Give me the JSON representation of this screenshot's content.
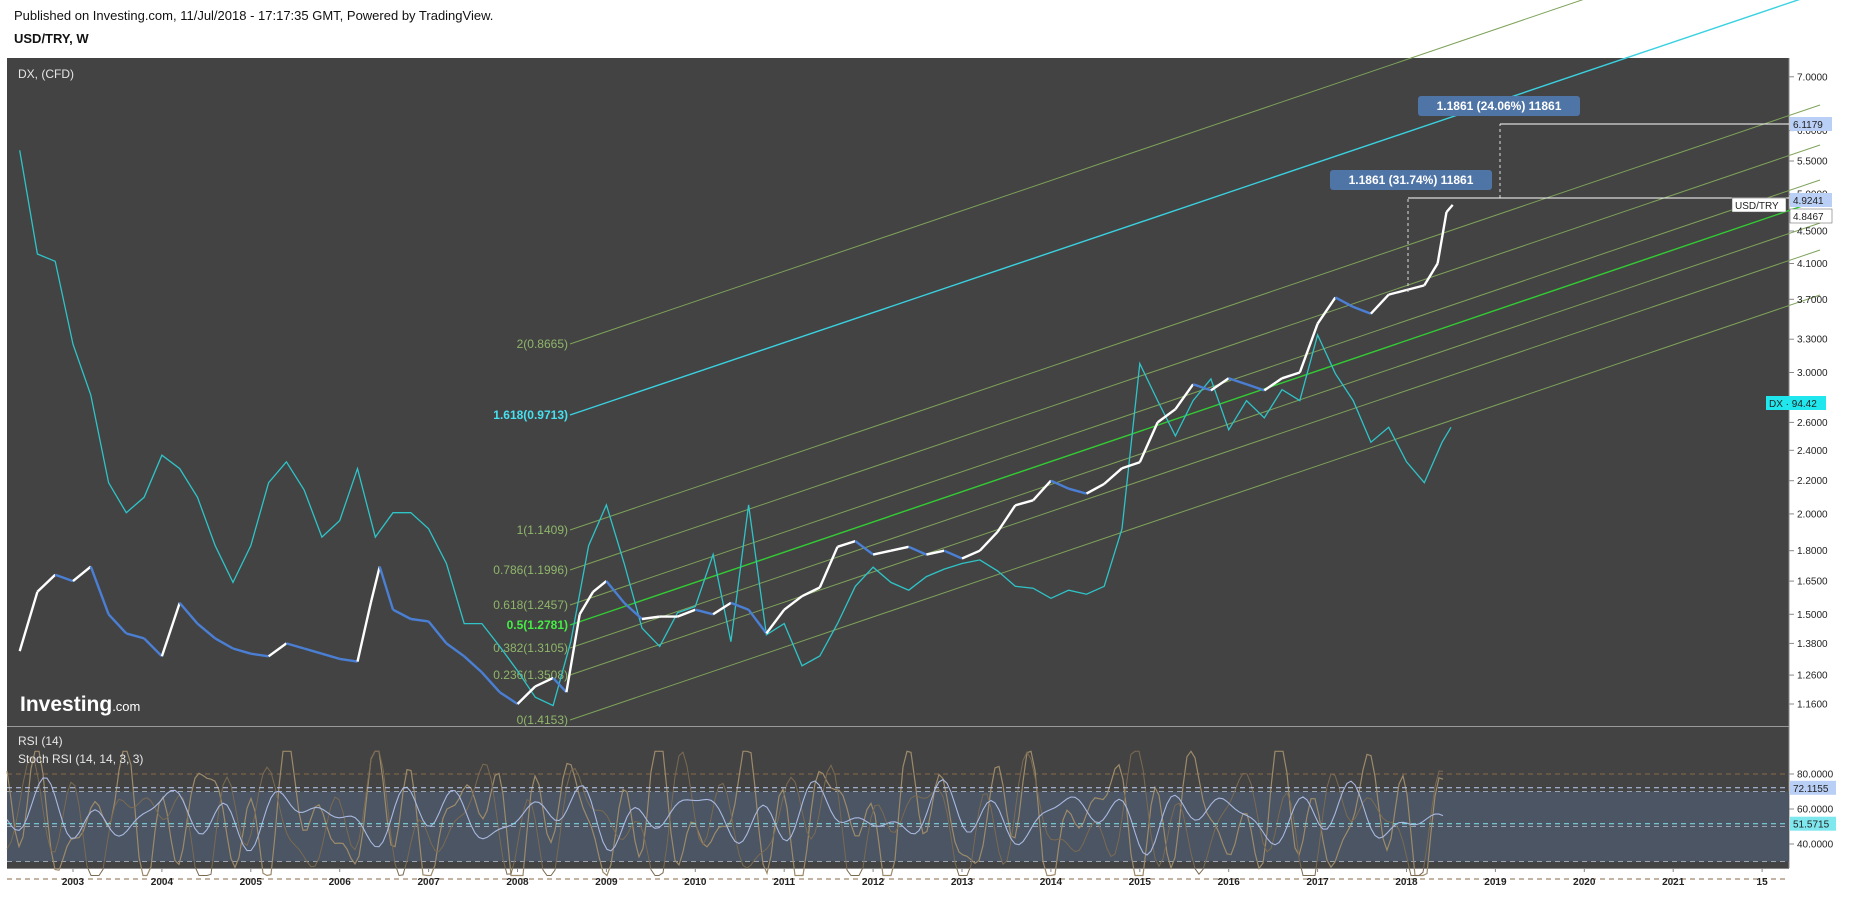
{
  "header": {
    "published": "Published on Investing.com, 11/Jul/2018 - 17:17:35 GMT, Powered by TradingView.",
    "symbol": "USD/TRY, W"
  },
  "main_panel": {
    "overlay_title": "DX,  (CFD)",
    "logo_text": "Investing",
    "logo_suffix": ".com"
  },
  "rsi_panel": {
    "title": "RSI (14)",
    "subtitle": "Stoch RSI (14, 14, 3, 3)"
  },
  "colors": {
    "background": "#434343",
    "price_up": "#ffffff",
    "price_down": "#4a7fd4",
    "dx_line": "#2ec4c8",
    "fib_line": "#7ea25a",
    "fib_mid": "#33cc33",
    "fib_top": "#3ad1e0",
    "rsi_band": "#4b5563"
  },
  "chart_data": [
    {
      "type": "line",
      "series": [
        {
          "name": "USD/TRY",
          "x": [
            2002.4,
            2002.6,
            2002.8,
            2003.0,
            2003.2,
            2003.4,
            2003.6,
            2003.8,
            2004.0,
            2004.2,
            2004.4,
            2004.6,
            2004.8,
            2005.0,
            2005.2,
            2005.4,
            2005.6,
            2005.8,
            2006.0,
            2006.2,
            2006.35,
            2006.45,
            2006.6,
            2006.8,
            2007.0,
            2007.2,
            2007.4,
            2007.6,
            2007.8,
            2008.0,
            2008.2,
            2008.4,
            2008.55,
            2008.7,
            2008.85,
            2009.0,
            2009.2,
            2009.4,
            2009.6,
            2009.8,
            2010.0,
            2010.2,
            2010.4,
            2010.6,
            2010.8,
            2011.0,
            2011.2,
            2011.4,
            2011.6,
            2011.8,
            2012.0,
            2012.2,
            2012.4,
            2012.6,
            2012.8,
            2013.0,
            2013.2,
            2013.4,
            2013.6,
            2013.8,
            2014.0,
            2014.2,
            2014.4,
            2014.6,
            2014.8,
            2015.0,
            2015.2,
            2015.4,
            2015.6,
            2015.8,
            2016.0,
            2016.2,
            2016.4,
            2016.6,
            2016.8,
            2017.0,
            2017.2,
            2017.4,
            2017.6,
            2017.8,
            2018.0,
            2018.2,
            2018.35,
            2018.45,
            2018.52
          ],
          "values": [
            1.35,
            1.6,
            1.68,
            1.65,
            1.72,
            1.5,
            1.42,
            1.4,
            1.33,
            1.55,
            1.46,
            1.4,
            1.36,
            1.34,
            1.33,
            1.38,
            1.36,
            1.34,
            1.32,
            1.31,
            1.55,
            1.72,
            1.52,
            1.48,
            1.47,
            1.38,
            1.33,
            1.27,
            1.2,
            1.16,
            1.22,
            1.25,
            1.2,
            1.5,
            1.6,
            1.65,
            1.55,
            1.48,
            1.49,
            1.49,
            1.52,
            1.5,
            1.55,
            1.52,
            1.42,
            1.52,
            1.58,
            1.62,
            1.82,
            1.85,
            1.78,
            1.8,
            1.82,
            1.78,
            1.8,
            1.76,
            1.8,
            1.9,
            2.05,
            2.08,
            2.2,
            2.15,
            2.12,
            2.18,
            2.28,
            2.32,
            2.6,
            2.7,
            2.9,
            2.85,
            2.95,
            2.9,
            2.85,
            2.95,
            3.0,
            3.45,
            3.72,
            3.62,
            3.55,
            3.75,
            3.8,
            3.85,
            4.1,
            4.75,
            4.85
          ]
        },
        {
          "name": "DX",
          "x": [
            2002.4,
            2002.6,
            2002.8,
            2003.0,
            2003.2,
            2003.4,
            2003.6,
            2003.8,
            2004.0,
            2004.2,
            2004.4,
            2004.6,
            2004.8,
            2005.0,
            2005.2,
            2005.4,
            2005.6,
            2005.8,
            2006.0,
            2006.2,
            2006.4,
            2006.6,
            2006.8,
            2007.0,
            2007.2,
            2007.4,
            2007.6,
            2007.8,
            2008.0,
            2008.2,
            2008.4,
            2008.6,
            2008.8,
            2009.0,
            2009.2,
            2009.4,
            2009.6,
            2009.8,
            2010.0,
            2010.2,
            2010.4,
            2010.6,
            2010.8,
            2011.0,
            2011.2,
            2011.4,
            2011.6,
            2011.8,
            2012.0,
            2012.2,
            2012.4,
            2012.6,
            2012.8,
            2013.0,
            2013.2,
            2013.4,
            2013.6,
            2013.8,
            2014.0,
            2014.2,
            2014.4,
            2014.6,
            2014.8,
            2015.0,
            2015.2,
            2015.4,
            2015.6,
            2015.8,
            2016.0,
            2016.2,
            2016.4,
            2016.6,
            2016.8,
            2017.0,
            2017.2,
            2017.4,
            2017.6,
            2017.8,
            2018.0,
            2018.2,
            2018.4,
            2018.5
          ],
          "values": [
            6.3,
            4.6,
            4.5,
            3.5,
            3.0,
            2.3,
            2.1,
            2.2,
            2.5,
            2.4,
            2.2,
            1.9,
            1.7,
            1.9,
            2.3,
            2.45,
            2.25,
            1.95,
            2.05,
            2.4,
            1.95,
            2.1,
            2.1,
            2.0,
            1.8,
            1.5,
            1.5,
            1.4,
            1.3,
            1.2,
            1.17,
            1.42,
            1.9,
            2.15,
            1.8,
            1.48,
            1.4,
            1.55,
            1.58,
            1.85,
            1.42,
            2.15,
            1.45,
            1.5,
            1.32,
            1.36,
            1.5,
            1.68,
            1.78,
            1.7,
            1.66,
            1.73,
            1.77,
            1.8,
            1.82,
            1.76,
            1.68,
            1.67,
            1.62,
            1.66,
            1.64,
            1.68,
            2.0,
            3.3,
            2.95,
            2.65,
            2.95,
            3.15,
            2.7,
            2.95,
            2.8,
            3.05,
            2.95,
            3.6,
            3.2,
            2.95,
            2.6,
            2.72,
            2.45,
            2.3,
            2.6,
            2.72
          ]
        }
      ],
      "ylim": [
        1.08,
        7.3
      ],
      "yticks": [
        "1.1600",
        "1.2600",
        "1.3800",
        "1.5000",
        "1.6500",
        "1.8000",
        "2.0000",
        "2.2000",
        "2.4000",
        "2.6000",
        "3.0000",
        "3.3000",
        "3.7000",
        "4.1000",
        "4.5000",
        "5.0000",
        "5.5000",
        "6.0000",
        "7.0000"
      ],
      "xticks": [
        "2003",
        "2004",
        "2005",
        "2006",
        "2007",
        "2008",
        "2009",
        "2010",
        "2011",
        "2012",
        "2013",
        "2014",
        "2015",
        "2016",
        "2017",
        "2018",
        "2019",
        "2020",
        "2021",
        "15"
      ],
      "price_labels": [
        {
          "text": "6.1179",
          "style": "blue"
        },
        {
          "text": "4.9241",
          "style": "blue"
        },
        {
          "text": "USD/TRY",
          "style": "white"
        },
        {
          "text": "4.8467",
          "style": "white"
        },
        {
          "text": "DX · 94.42",
          "style": "cyan"
        }
      ],
      "fib_channel": [
        {
          "label": "2(0.8665)",
          "highlight": "normal"
        },
        {
          "label": "1.618(0.9713)",
          "highlight": "cyan"
        },
        {
          "label": "1(1.1409)",
          "highlight": "normal"
        },
        {
          "label": "0.786(1.1996)",
          "highlight": "normal"
        },
        {
          "label": "0.618(1.2457)",
          "highlight": "normal"
        },
        {
          "label": "0.5(1.2781)",
          "highlight": "green"
        },
        {
          "label": "0.382(1.3105)",
          "highlight": "normal"
        },
        {
          "label": "0.236(1.3508)",
          "highlight": "normal"
        },
        {
          "label": "0(1.4153)",
          "highlight": "normal"
        }
      ],
      "measurements": [
        {
          "label": "1.1861 (31.74%) 11861"
        },
        {
          "label": "1.1861 (24.06%) 11861"
        }
      ]
    },
    {
      "type": "line",
      "ylim": [
        20,
        95
      ],
      "yticks": [
        "80.0000",
        "60.0000",
        "40.0000"
      ],
      "levels": [
        80,
        70,
        50,
        30,
        20
      ],
      "rsi_levels": [
        30,
        70
      ],
      "stoch_levels": [
        20,
        80
      ],
      "value_labels": [
        "72.1155",
        "51.5715"
      ]
    }
  ]
}
